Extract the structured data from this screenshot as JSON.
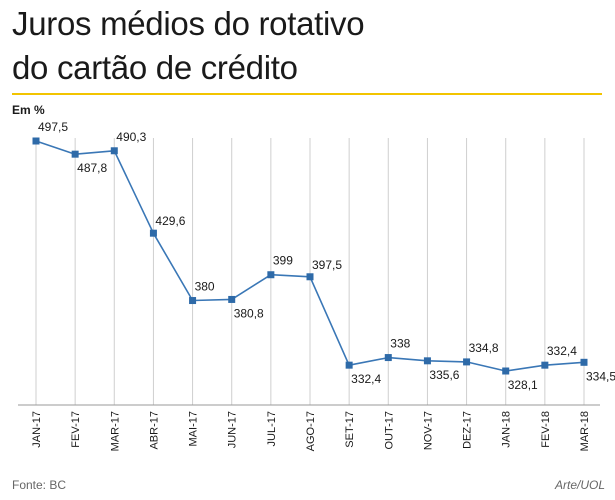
{
  "header": {
    "title_line1": "Juros médios do rotativo",
    "title_line2": "do cartão de crédito"
  },
  "unit_label": "Em %",
  "footer": {
    "source": "Fonte: BC",
    "credit": "Arte/UOL"
  },
  "colors": {
    "accent_rule": "#f2c400",
    "series": "#3a77b6",
    "marker": "#2e6aa8",
    "gridline": "#cfcfcf"
  },
  "chart_data": {
    "type": "line",
    "title": "Juros médios do rotativo do cartão de crédito",
    "ylabel": "Em %",
    "xlabel": "",
    "grid": "vertical",
    "legend": "none",
    "ylim": [
      300,
      510
    ],
    "categories": [
      "JAN-17",
      "FEV-17",
      "MAR-17",
      "ABR-17",
      "MAI-17",
      "JUN-17",
      "JUL-17",
      "AGO-17",
      "SET-17",
      "OUT-17",
      "NOV-17",
      "DEZ-17",
      "JAN-18",
      "FEV-18",
      "MAR-18"
    ],
    "values": [
      497.5,
      487.8,
      490.3,
      429.6,
      380,
      380.8,
      399,
      397.5,
      332.4,
      338,
      335.6,
      334.8,
      328.1,
      332.4,
      334.5
    ],
    "data_labels": [
      "497,5",
      "487,8",
      "490,3",
      "429,6",
      "380",
      "380,8",
      "399",
      "397,5",
      "332,4",
      "338",
      "335,6",
      "334,8",
      "328,1",
      "332,4",
      "334,5"
    ],
    "label_positions": [
      "above",
      "below",
      "above",
      "right",
      "above",
      "below",
      "above",
      "right",
      "below",
      "above",
      "below",
      "above",
      "below",
      "above",
      "below"
    ]
  }
}
